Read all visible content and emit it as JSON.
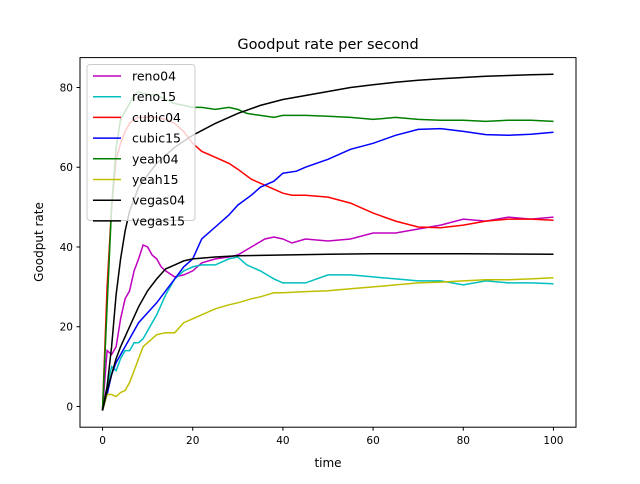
{
  "chart_data": {
    "type": "line",
    "title": "Goodput rate per second",
    "xlabel": "time",
    "ylabel": "Goodput rate",
    "xlim": [
      -5,
      105
    ],
    "ylim": [
      -5.2,
      87.5
    ],
    "xticks": [
      0,
      20,
      40,
      60,
      80,
      100
    ],
    "yticks": [
      0,
      20,
      40,
      60,
      80
    ],
    "grid": false,
    "legend_position": "top-left",
    "series": [
      {
        "name": "reno04",
        "color": "#bf00bf",
        "x": [
          0,
          1,
          2,
          3,
          4,
          5,
          6,
          7,
          8,
          9,
          10,
          11,
          12,
          13,
          14,
          16,
          18,
          20,
          22,
          25,
          28,
          30,
          33,
          36,
          38,
          40,
          42,
          45,
          50,
          55,
          60,
          65,
          70,
          75,
          80,
          85,
          90,
          95,
          100
        ],
        "y": [
          -1,
          14,
          13,
          15,
          22,
          27,
          29,
          34,
          37,
          40.5,
          40,
          38,
          37,
          35,
          34,
          32.5,
          33,
          34,
          36,
          37,
          37.5,
          38,
          40,
          42,
          42.5,
          42,
          41,
          42,
          41.5,
          42,
          43.5,
          43.5,
          44.5,
          45.5,
          47,
          46.5,
          47.5,
          47,
          47.5
        ]
      },
      {
        "name": "reno15",
        "color": "#00bfbf",
        "x": [
          0,
          1,
          2,
          3,
          4,
          5,
          6,
          7,
          8,
          9,
          10,
          12,
          14,
          16,
          18,
          20,
          22,
          25,
          28,
          30,
          32,
          35,
          38,
          40,
          45,
          50,
          55,
          60,
          65,
          70,
          75,
          80,
          85,
          90,
          95,
          100
        ],
        "y": [
          -1,
          5,
          10,
          9,
          12,
          14,
          14,
          16,
          16,
          17,
          19,
          23,
          28,
          32,
          34,
          35,
          35.5,
          35.5,
          37,
          37.5,
          35.5,
          34,
          32,
          31,
          31,
          33,
          33,
          32.5,
          32,
          31.5,
          31.5,
          30.5,
          31.5,
          31,
          31,
          30.8
        ]
      },
      {
        "name": "cubic04",
        "color": "#ff0000",
        "x": [
          0,
          1,
          2,
          3,
          4,
          5,
          6,
          7,
          8,
          10,
          12,
          14,
          16,
          18,
          20,
          22,
          25,
          28,
          30,
          33,
          36,
          40,
          42,
          45,
          50,
          55,
          60,
          65,
          70,
          75,
          80,
          85,
          90,
          95,
          100
        ],
        "y": [
          -1,
          30,
          50,
          62,
          66,
          69,
          71,
          72,
          72.5,
          72.5,
          72.5,
          72,
          71,
          69,
          66,
          64,
          62.5,
          61,
          59.5,
          57,
          55.5,
          53.5,
          53,
          53,
          52.5,
          51,
          48.5,
          46.5,
          45,
          44.8,
          45.5,
          46.5,
          47,
          47,
          46.7
        ]
      },
      {
        "name": "cubic15",
        "color": "#0000ff",
        "x": [
          0,
          1,
          2,
          3,
          4,
          6,
          8,
          10,
          12,
          14,
          16,
          18,
          20,
          22,
          25,
          28,
          30,
          33,
          35,
          38,
          40,
          43,
          45,
          50,
          55,
          60,
          65,
          70,
          75,
          80,
          85,
          90,
          95,
          100
        ],
        "y": [
          -1,
          3,
          8,
          11,
          13,
          17,
          21,
          23.5,
          26,
          29,
          32,
          35,
          37,
          42,
          45,
          48,
          50.5,
          53,
          55,
          56.5,
          58.5,
          59,
          60,
          62,
          64.5,
          66,
          68,
          69.5,
          69.7,
          69,
          68.2,
          68,
          68.3,
          68.8
        ]
      },
      {
        "name": "yeah04",
        "color": "#008000",
        "x": [
          0,
          1,
          2,
          3,
          4,
          5,
          6,
          7,
          8,
          9,
          10,
          12,
          14,
          16,
          18,
          20,
          22,
          25,
          28,
          30,
          32,
          35,
          38,
          40,
          45,
          50,
          55,
          60,
          65,
          70,
          75,
          80,
          85,
          90,
          95,
          100
        ],
        "y": [
          -1,
          25,
          50,
          65,
          72,
          74,
          76,
          78,
          79,
          78.5,
          78.3,
          78,
          77,
          76,
          75.5,
          75,
          75,
          74.5,
          75,
          74.5,
          73.5,
          73,
          72.5,
          73,
          73,
          72.8,
          72.5,
          72,
          72.5,
          72,
          71.8,
          71.8,
          71.5,
          71.8,
          71.8,
          71.5
        ]
      },
      {
        "name": "yeah15",
        "color": "#bfbf00",
        "x": [
          0,
          1,
          2,
          3,
          4,
          5,
          6,
          7,
          8,
          9,
          10,
          12,
          14,
          16,
          18,
          20,
          22,
          25,
          28,
          30,
          33,
          35,
          38,
          40,
          45,
          50,
          55,
          60,
          65,
          70,
          75,
          80,
          85,
          90,
          95,
          100
        ],
        "y": [
          -1,
          3,
          3,
          2.5,
          3.5,
          4,
          6,
          9,
          12,
          15,
          16,
          18,
          18.5,
          18.5,
          21,
          22,
          23,
          24.5,
          25.5,
          26,
          27,
          27.5,
          28.5,
          28.5,
          28.8,
          29,
          29.5,
          30,
          30.5,
          31,
          31.2,
          31.5,
          31.8,
          31.8,
          32,
          32.3
        ]
      },
      {
        "name": "vegas04",
        "color": "#000000",
        "x": [
          0,
          1,
          2,
          3,
          4,
          5,
          6,
          7,
          8,
          10,
          12,
          14,
          16,
          18,
          20,
          25,
          30,
          35,
          40,
          45,
          50,
          55,
          60,
          65,
          70,
          75,
          80,
          85,
          90,
          95,
          100
        ],
        "y": [
          -1,
          5,
          15,
          28,
          37,
          44,
          49,
          52,
          55,
          58,
          61,
          63,
          65,
          66.5,
          68,
          71,
          73.5,
          75.5,
          77,
          78,
          79,
          80,
          80.7,
          81.3,
          81.8,
          82.2,
          82.5,
          82.8,
          83,
          83.2,
          83.3
        ]
      },
      {
        "name": "vegas15",
        "color": "#000000",
        "x": [
          0,
          1,
          2,
          3,
          4,
          6,
          8,
          10,
          12,
          14,
          16,
          18,
          20,
          25,
          30,
          40,
          50,
          60,
          80,
          100
        ],
        "y": [
          -1,
          4,
          8,
          12,
          15,
          20,
          25,
          29,
          32,
          34.5,
          35.5,
          36.5,
          37,
          37.5,
          37.8,
          38,
          38.2,
          38.3,
          38.3,
          38.2
        ]
      }
    ]
  }
}
